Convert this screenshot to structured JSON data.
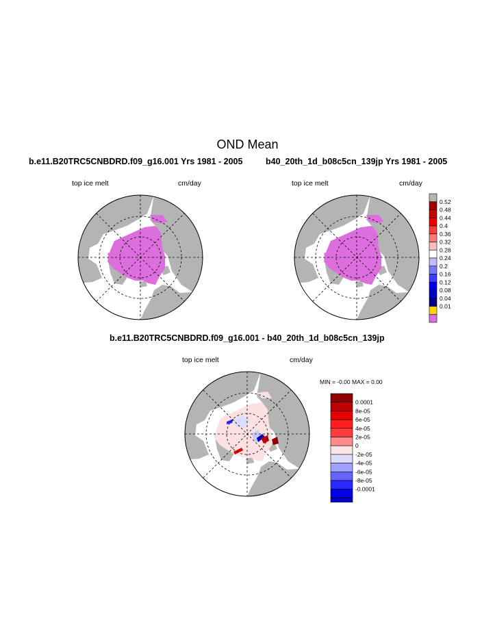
{
  "main_title": "OND Mean",
  "panels": [
    {
      "title": "b.e11.B20TRC5CNBDRD.f09_g16.001  Yrs 1981 - 2005",
      "left_label": "top ice melt",
      "right_label": "cm/day"
    },
    {
      "title": "b40_20th_1d_b08c5cn_139jp  Yrs 1981 - 2005",
      "left_label": "top ice melt",
      "right_label": "cm/day"
    },
    {
      "title": "b.e11.B20TRC5CNBDRD.f09_g16.001 - b40_20th_1d_b08c5cn_139jp",
      "left_label": "top ice melt",
      "right_label": "cm/day",
      "minmax": "MIN =  -0.00 MAX =   0.00"
    }
  ],
  "colors": {
    "land": "#b4b4b4",
    "ice_melt": "#dd6edd",
    "ocean": "#ffffff"
  },
  "chart_data": [
    {
      "type": "heatmap",
      "projection": "north-polar-stereographic",
      "title": "b.e11.B20TRC5CNBDRD.f09_g16.001  Yrs 1981 - 2005",
      "variable": "top ice melt",
      "units": "cm/day",
      "dominant_value_range": [
        0,
        0.01
      ]
    },
    {
      "type": "heatmap",
      "projection": "north-polar-stereographic",
      "title": "b40_20th_1d_b08c5cn_139jp  Yrs 1981 - 2005",
      "variable": "top ice melt",
      "units": "cm/day",
      "dominant_value_range": [
        0,
        0.01
      ]
    },
    {
      "type": "heatmap",
      "projection": "north-polar-stereographic",
      "title": "b.e11.B20TRC5CNBDRD.f09_g16.001 - b40_20th_1d_b08c5cn_139jp",
      "variable": "top ice melt",
      "units": "cm/day",
      "min": "-0.00",
      "max": "0.00"
    }
  ],
  "colorbar_top": {
    "labels": [
      "0.52",
      "0.48",
      "0.44",
      "0.4",
      "0.36",
      "0.32",
      "0.28",
      "0.24",
      "0.2",
      "0.16",
      "0.12",
      "0.08",
      "0.04",
      "0.01"
    ],
    "colors": [
      "#b4b4b4",
      "#a00000",
      "#c80000",
      "#f00000",
      "#ff3c3c",
      "#ff7878",
      "#ffbebe",
      "#ffffff",
      "#bebeff",
      "#7878ff",
      "#3c3cff",
      "#0000f0",
      "#0000c8",
      "#00008c",
      "#ffd700",
      "#dd6edd"
    ]
  },
  "colorbar_diff": {
    "labels": [
      "0.0001",
      "8e-05",
      "6e-05",
      "4e-05",
      "2e-05",
      "0",
      "-2e-05",
      "-4e-05",
      "-6e-05",
      "-8e-05",
      "-0.0001"
    ],
    "colors": [
      "#8c0000",
      "#be0000",
      "#e60000",
      "#ff1e1e",
      "#ff3c3c",
      "#ff8c8c",
      "#ffe6e6",
      "#dcdcff",
      "#a0a0ff",
      "#6464ff",
      "#2828ff",
      "#0000e6",
      "#0000be",
      "#00008c"
    ]
  }
}
